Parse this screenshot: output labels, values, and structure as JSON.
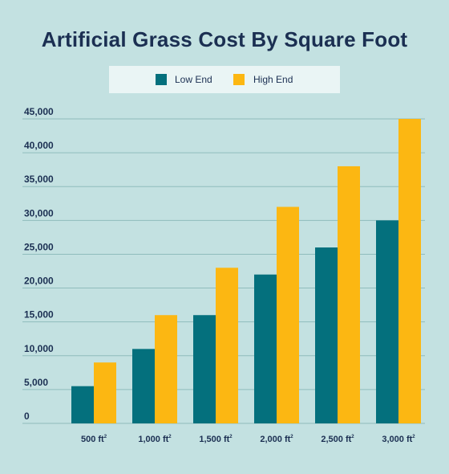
{
  "chart_data": {
    "type": "bar",
    "title": "Artificial Grass Cost By Square Foot",
    "xlabel": "",
    "ylabel": "",
    "categories": [
      "500 ft",
      "1,000 ft",
      "1,500 ft",
      "2,000 ft",
      "2,500 ft",
      "3,000 ft"
    ],
    "category_unit_superscript": "2",
    "series": [
      {
        "name": "Low End",
        "color": "#04707d",
        "values": [
          5500,
          11000,
          16000,
          22000,
          26000,
          30000
        ]
      },
      {
        "name": "High End",
        "color": "#fcb712",
        "values": [
          9000,
          16000,
          23000,
          32000,
          38000,
          45000
        ]
      }
    ],
    "ylim": [
      0,
      45000
    ],
    "y_ticks": [
      0,
      5000,
      10000,
      15000,
      20000,
      25000,
      30000,
      35000,
      40000,
      45000
    ],
    "y_tick_labels": [
      "0",
      "5,000",
      "10,000",
      "15,000",
      "20,000",
      "25,000",
      "30,000",
      "35,000",
      "40,000",
      "45,000"
    ],
    "grid": true,
    "legend_position": "top-center"
  },
  "colors": {
    "background": "#c3e1e1",
    "legend_background": "#eaf5f5",
    "text": "#1b2f52",
    "gridline": "#8fbcbc"
  }
}
